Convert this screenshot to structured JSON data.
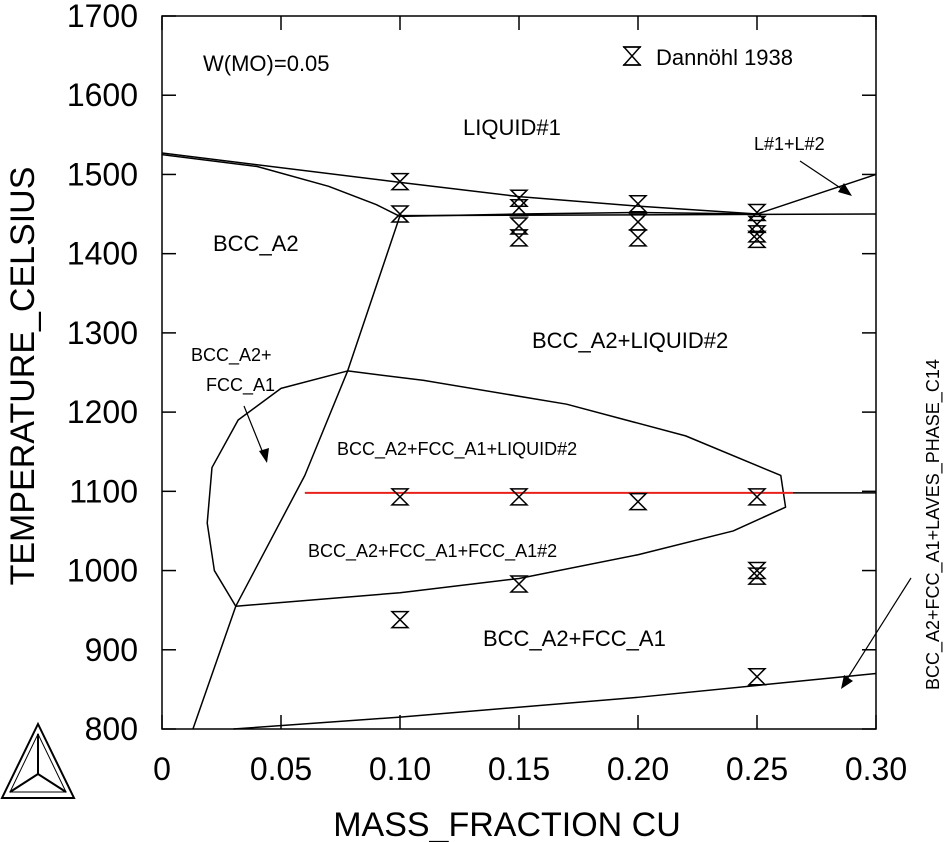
{
  "chart_data": {
    "type": "scatter",
    "xlabel": "MASS_FRACTION CU",
    "ylabel": "TEMPERATURE_CELSIUS",
    "xlim": [
      0,
      0.3
    ],
    "ylim": [
      800,
      1700
    ],
    "x_ticks": [
      "0",
      "0.05",
      "0.10",
      "0.15",
      "0.20",
      "0.25",
      "0.30"
    ],
    "y_ticks": [
      "800",
      "900",
      "1000",
      "1100",
      "1200",
      "1300",
      "1400",
      "1500",
      "1600",
      "1700"
    ],
    "annotation_composition": "W(MO)=0.05",
    "legend": {
      "label": "Dannöhl 1938",
      "marker": "hourglass",
      "placement": "top-right"
    },
    "region_labels": {
      "liquid": "LIQUID#1",
      "l1l2": "L#1+L#2",
      "bcc": "BCC_A2",
      "bcc_liq2": "BCC_A2+LIQUID#2",
      "bcc_fcc_line1": "BCC_A2+",
      "bcc_fcc_line2": "FCC_A1",
      "bcc_fcc_liq2": "BCC_A2+FCC_A1+LIQUID#2",
      "bcc_fcc_fcc2": "BCC_A2+FCC_A1+FCC_A1#2",
      "bcc_fcc": "BCC_A2+FCC_A1",
      "laves": "BCC_A2+FCC_A1+LAVES_PHASE_C14"
    },
    "series": [
      {
        "name": "Dannöhl 1938",
        "points": [
          [
            0.1,
            1491
          ],
          [
            0.1,
            1450
          ],
          [
            0.1,
            1093
          ],
          [
            0.15,
            1470
          ],
          [
            0.15,
            1458
          ],
          [
            0.15,
            1435
          ],
          [
            0.15,
            1420
          ],
          [
            0.15,
            1093
          ],
          [
            0.15,
            983
          ],
          [
            0.2,
            1463
          ],
          [
            0.2,
            1440
          ],
          [
            0.2,
            1420
          ],
          [
            0.2,
            1087
          ],
          [
            0.25,
            1452
          ],
          [
            0.25,
            1437
          ],
          [
            0.25,
            1425
          ],
          [
            0.25,
            1418
          ],
          [
            0.25,
            1093
          ],
          [
            0.25,
            1000
          ],
          [
            0.25,
            993
          ],
          [
            0.25,
            866
          ],
          [
            0.1,
            938
          ]
        ]
      }
    ],
    "phase_boundaries": [
      {
        "name": "liquidus",
        "points": [
          [
            0,
            1527
          ],
          [
            0.1,
            1490
          ],
          [
            0.15,
            1472
          ],
          [
            0.2,
            1460
          ],
          [
            0.25,
            1450
          ]
        ]
      },
      {
        "name": "solidus",
        "points": [
          [
            0,
            1525
          ],
          [
            0.04,
            1510
          ],
          [
            0.07,
            1485
          ],
          [
            0.09,
            1462
          ],
          [
            0.1,
            1447
          ],
          [
            0.15,
            1450
          ],
          [
            0.2,
            1452
          ],
          [
            0.25,
            1450
          ]
        ]
      },
      {
        "name": "monotectic",
        "points": [
          [
            0.1,
            1448
          ],
          [
            0.3,
            1450
          ]
        ]
      },
      {
        "name": "l1l2-boundary",
        "points": [
          [
            0.25,
            1450
          ],
          [
            0.3,
            1500
          ]
        ]
      },
      {
        "name": "bcc-boundary",
        "points": [
          [
            0.1,
            1448
          ],
          [
            0.078,
            1252
          ],
          [
            0.06,
            1120
          ],
          [
            0.031,
            955
          ],
          [
            0.013,
            800
          ]
        ]
      },
      {
        "name": "fcc-loop",
        "points": [
          [
            0.078,
            1252
          ],
          [
            0.11,
            1240
          ],
          [
            0.17,
            1210
          ],
          [
            0.22,
            1170
          ],
          [
            0.26,
            1120
          ],
          [
            0.262,
            1080
          ],
          [
            0.24,
            1050
          ],
          [
            0.2,
            1020
          ],
          [
            0.15,
            990
          ],
          [
            0.1,
            972
          ],
          [
            0.031,
            955
          ],
          [
            0.022,
            1000
          ],
          [
            0.019,
            1060
          ],
          [
            0.021,
            1130
          ],
          [
            0.032,
            1190
          ],
          [
            0.05,
            1230
          ],
          [
            0.078,
            1252
          ]
        ]
      },
      {
        "name": "eutectic-line",
        "points": [
          [
            0.06,
            1098
          ],
          [
            0.265,
            1098
          ]
        ],
        "color": "#e8221b"
      },
      {
        "name": "eutectic-extension",
        "points": [
          [
            0.265,
            1098
          ],
          [
            0.3,
            1098
          ]
        ]
      },
      {
        "name": "laves-boundary",
        "points": [
          [
            0.03,
            800
          ],
          [
            0.1,
            815
          ],
          [
            0.2,
            840
          ],
          [
            0.3,
            870
          ]
        ]
      }
    ]
  }
}
